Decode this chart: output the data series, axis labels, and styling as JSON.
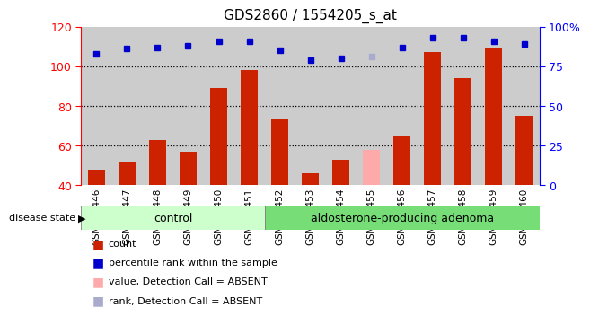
{
  "title": "GDS2860 / 1554205_s_at",
  "samples": [
    "GSM211446",
    "GSM211447",
    "GSM211448",
    "GSM211449",
    "GSM211450",
    "GSM211451",
    "GSM211452",
    "GSM211453",
    "GSM211454",
    "GSM211455",
    "GSM211456",
    "GSM211457",
    "GSM211458",
    "GSM211459",
    "GSM211460"
  ],
  "counts": [
    48,
    52,
    63,
    57,
    89,
    98,
    73,
    46,
    53,
    58,
    65,
    107,
    94,
    109,
    75
  ],
  "percentile_ranks": [
    83,
    86,
    87,
    88,
    91,
    91,
    85,
    79,
    80,
    81,
    87,
    93,
    93,
    91,
    89
  ],
  "absent_count_idx": [
    9
  ],
  "absent_rank_idx": [
    9
  ],
  "control_count": 6,
  "ylim_left": [
    40,
    120
  ],
  "ylim_right": [
    0,
    100
  ],
  "yticks_left": [
    40,
    60,
    80,
    100,
    120
  ],
  "yticks_right": [
    0,
    25,
    50,
    75,
    100
  ],
  "bar_color": "#cc2200",
  "absent_bar_color": "#ffaaaa",
  "dot_color": "#0000cc",
  "absent_dot_color": "#aaaacc",
  "control_bg": "#ccffcc",
  "adenoma_bg": "#77dd77",
  "col_bg": "#cccccc",
  "control_label": "control",
  "adenoma_label": "aldosterone-producing adenoma",
  "disease_state_label": "disease state",
  "legend_items": [
    "count",
    "percentile rank within the sample",
    "value, Detection Call = ABSENT",
    "rank, Detection Call = ABSENT"
  ],
  "legend_colors": [
    "#cc2200",
    "#0000cc",
    "#ffaaaa",
    "#aaaacc"
  ]
}
